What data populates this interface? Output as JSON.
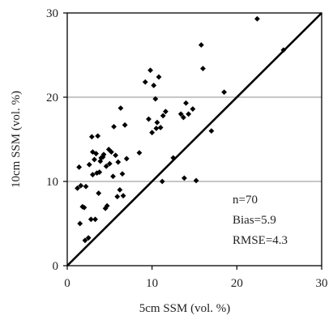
{
  "chart_data": {
    "type": "scatter",
    "xlabel": "5cm SSM (vol. %)",
    "ylabel": "10cm SSM (vol. %)",
    "xlim": [
      0,
      30
    ],
    "ylim": [
      0,
      30
    ],
    "xticks": [
      "0",
      "10",
      "20",
      "30"
    ],
    "yticks": [
      "0",
      "10",
      "20",
      "30"
    ],
    "grid": "horizontal",
    "reference_line": {
      "type": "1:1",
      "from": [
        0,
        0
      ],
      "to": [
        30,
        30
      ]
    },
    "stats": {
      "n": "n=70",
      "bias": "Bias=5.9",
      "rmse": "RMSE=4.3"
    },
    "points": [
      [
        1.2,
        9.2
      ],
      [
        1.4,
        11.7
      ],
      [
        1.5,
        5.0
      ],
      [
        1.6,
        9.5
      ],
      [
        1.8,
        7.0
      ],
      [
        2.0,
        6.9
      ],
      [
        2.1,
        3.0
      ],
      [
        2.2,
        9.4
      ],
      [
        2.5,
        3.3
      ],
      [
        2.6,
        12.0
      ],
      [
        2.8,
        5.5
      ],
      [
        2.9,
        15.3
      ],
      [
        3.0,
        13.5
      ],
      [
        3.0,
        10.8
      ],
      [
        3.2,
        12.6
      ],
      [
        3.3,
        5.5
      ],
      [
        3.4,
        13.3
      ],
      [
        3.5,
        11.0
      ],
      [
        3.6,
        15.4
      ],
      [
        3.7,
        8.6
      ],
      [
        3.8,
        11.1
      ],
      [
        3.9,
        12.4
      ],
      [
        4.0,
        12.8
      ],
      [
        4.2,
        12.9
      ],
      [
        4.3,
        13.2
      ],
      [
        4.5,
        6.8
      ],
      [
        4.6,
        11.8
      ],
      [
        4.7,
        7.1
      ],
      [
        4.9,
        13.8
      ],
      [
        5.0,
        12.1
      ],
      [
        5.2,
        13.5
      ],
      [
        5.4,
        10.6
      ],
      [
        5.5,
        16.5
      ],
      [
        5.7,
        13.1
      ],
      [
        5.9,
        8.2
      ],
      [
        6.0,
        12.3
      ],
      [
        6.2,
        9.0
      ],
      [
        6.3,
        18.7
      ],
      [
        6.5,
        10.9
      ],
      [
        6.6,
        8.3
      ],
      [
        6.8,
        16.7
      ],
      [
        7.0,
        12.7
      ],
      [
        8.5,
        13.4
      ],
      [
        9.2,
        21.8
      ],
      [
        9.6,
        17.4
      ],
      [
        9.8,
        23.2
      ],
      [
        10.0,
        15.8
      ],
      [
        10.2,
        21.4
      ],
      [
        10.4,
        19.8
      ],
      [
        10.5,
        16.3
      ],
      [
        10.6,
        17.0
      ],
      [
        10.8,
        22.4
      ],
      [
        11.0,
        16.4
      ],
      [
        11.2,
        10.0
      ],
      [
        11.3,
        17.8
      ],
      [
        11.6,
        18.3
      ],
      [
        12.5,
        12.8
      ],
      [
        13.4,
        18.0
      ],
      [
        13.7,
        17.6
      ],
      [
        13.8,
        10.4
      ],
      [
        14.0,
        19.3
      ],
      [
        14.3,
        18.0
      ],
      [
        14.8,
        18.6
      ],
      [
        15.2,
        10.1
      ],
      [
        15.8,
        26.2
      ],
      [
        16.0,
        23.4
      ],
      [
        17.0,
        16.0
      ],
      [
        18.5,
        20.6
      ],
      [
        22.4,
        29.3
      ],
      [
        25.5,
        25.6
      ]
    ]
  }
}
